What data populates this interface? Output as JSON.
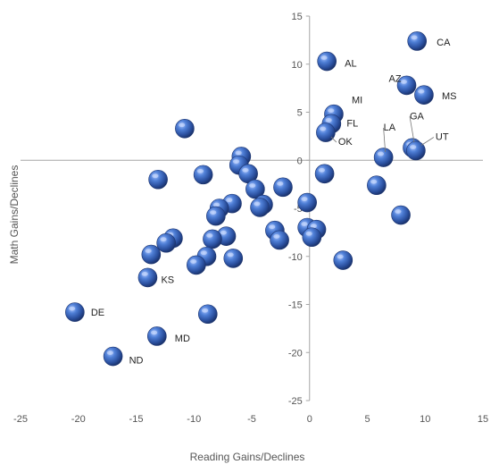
{
  "chart_data": {
    "type": "scatter",
    "xlabel": "Reading Gains/Declines",
    "ylabel": "Math Gains/Declines",
    "xlim": [
      -25,
      15
    ],
    "ylim": [
      -25,
      15
    ],
    "x_ticks": [
      "-25",
      "-20",
      "-15",
      "-10",
      "-5",
      "0",
      "5",
      "10",
      "15"
    ],
    "y_ticks": [
      "15",
      "10",
      "5",
      "0",
      "-5",
      "-10",
      "-15",
      "-20",
      "-25"
    ],
    "marker_color": "#3a66b8",
    "points": [
      {
        "x": 9.3,
        "y": 12.4,
        "label": "CA"
      },
      {
        "x": 1.5,
        "y": 10.3,
        "label": "AL"
      },
      {
        "x": 8.4,
        "y": 7.8,
        "label": "AZ"
      },
      {
        "x": 9.9,
        "y": 6.8,
        "label": "MS"
      },
      {
        "x": 2.1,
        "y": 4.8,
        "label": "MI"
      },
      {
        "x": 1.9,
        "y": 3.8,
        "label": "FL"
      },
      {
        "x": 1.4,
        "y": 2.9,
        "label": "OK"
      },
      {
        "x": 6.4,
        "y": 0.3,
        "label": "LA"
      },
      {
        "x": 8.9,
        "y": 1.3,
        "label": "GA"
      },
      {
        "x": 9.2,
        "y": 1.0,
        "label": "UT"
      },
      {
        "x": -14.0,
        "y": -12.2,
        "label": "KS"
      },
      {
        "x": -20.3,
        "y": -15.8,
        "label": "DE"
      },
      {
        "x": -13.2,
        "y": -18.3,
        "label": "MD"
      },
      {
        "x": -17.0,
        "y": -20.4,
        "label": "ND"
      },
      {
        "x": -10.8,
        "y": 3.3,
        "label": ""
      },
      {
        "x": -13.1,
        "y": -2.0,
        "label": ""
      },
      {
        "x": -9.2,
        "y": -1.5,
        "label": ""
      },
      {
        "x": -5.9,
        "y": 0.4,
        "label": ""
      },
      {
        "x": -6.1,
        "y": -0.5,
        "label": ""
      },
      {
        "x": -5.3,
        "y": -1.4,
        "label": ""
      },
      {
        "x": -4.7,
        "y": -3.0,
        "label": ""
      },
      {
        "x": -2.3,
        "y": -2.8,
        "label": ""
      },
      {
        "x": -4.0,
        "y": -4.6,
        "label": ""
      },
      {
        "x": -4.3,
        "y": -4.9,
        "label": ""
      },
      {
        "x": -6.7,
        "y": -4.5,
        "label": ""
      },
      {
        "x": -7.8,
        "y": -5.0,
        "label": ""
      },
      {
        "x": -8.1,
        "y": -5.8,
        "label": ""
      },
      {
        "x": -3.0,
        "y": -7.3,
        "label": ""
      },
      {
        "x": -2.6,
        "y": -8.3,
        "label": ""
      },
      {
        "x": -7.2,
        "y": -7.9,
        "label": ""
      },
      {
        "x": -8.4,
        "y": -8.2,
        "label": ""
      },
      {
        "x": -11.8,
        "y": -8.1,
        "label": ""
      },
      {
        "x": -12.4,
        "y": -8.6,
        "label": ""
      },
      {
        "x": -13.7,
        "y": -9.8,
        "label": ""
      },
      {
        "x": -6.6,
        "y": -10.2,
        "label": ""
      },
      {
        "x": -8.9,
        "y": -10.0,
        "label": ""
      },
      {
        "x": -9.8,
        "y": -10.9,
        "label": ""
      },
      {
        "x": -0.2,
        "y": -4.4,
        "label": ""
      },
      {
        "x": -0.2,
        "y": -7.0,
        "label": ""
      },
      {
        "x": 0.6,
        "y": -7.2,
        "label": ""
      },
      {
        "x": 0.2,
        "y": -8.0,
        "label": ""
      },
      {
        "x": 1.3,
        "y": -1.4,
        "label": ""
      },
      {
        "x": 5.8,
        "y": -2.6,
        "label": ""
      },
      {
        "x": 7.9,
        "y": -5.7,
        "label": ""
      },
      {
        "x": 2.9,
        "y": -10.4,
        "label": ""
      },
      {
        "x": -8.8,
        "y": -16.0,
        "label": ""
      }
    ]
  }
}
